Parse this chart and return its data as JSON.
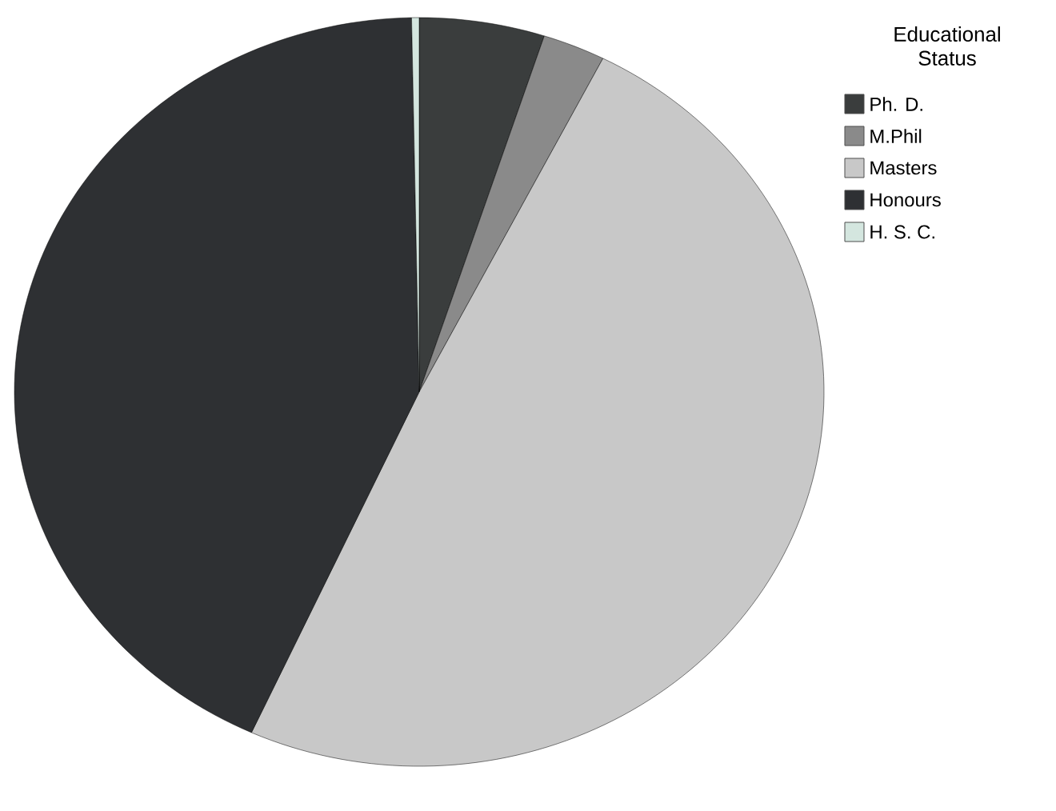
{
  "chart_data": {
    "type": "pie",
    "legend_title": "Educational Status",
    "legend": "top right",
    "categories": [
      "Ph. D.",
      "M.Phil",
      "Masters",
      "Honours",
      "H. S. C."
    ],
    "values": [
      5,
      2.5,
      49.3,
      42.9,
      0.3
    ],
    "colors": [
      "#3a3d3d",
      "#8a8a8a",
      "#c8c8c8",
      "#2e3033",
      "#d4e6df"
    ]
  }
}
